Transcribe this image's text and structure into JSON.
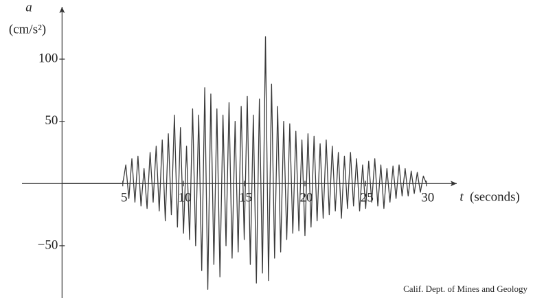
{
  "chart_data": {
    "type": "line",
    "y_label_var": "a",
    "y_label_unit": "(cm/s²)",
    "x_label_var": "t",
    "x_label_unit": "(seconds)",
    "source": "Calif. Dept. of Mines and Geology",
    "color": "#3a3a3a",
    "xlim": [
      -3.3,
      32.5
    ],
    "ylim": [
      -92,
      142
    ],
    "xticks": [
      5,
      10,
      15,
      20,
      25,
      30
    ],
    "yticks": [
      100,
      50,
      {
        "value": -50,
        "label": "−50"
      }
    ],
    "x": [
      0,
      5.0,
      5.25,
      5.5,
      5.75,
      6.0,
      6.25,
      6.5,
      6.75,
      7.0,
      7.25,
      7.5,
      7.75,
      8.0,
      8.25,
      8.5,
      8.75,
      9.0,
      9.25,
      9.5,
      9.75,
      10.0,
      10.25,
      10.5,
      10.75,
      11.0,
      11.25,
      11.5,
      11.75,
      12.0,
      12.25,
      12.5,
      12.75,
      13.0,
      13.25,
      13.5,
      13.75,
      14.0,
      14.25,
      14.5,
      14.75,
      15.0,
      15.25,
      15.5,
      15.75,
      16.0,
      16.25,
      16.5,
      16.75,
      17.0,
      17.25,
      17.5,
      17.75,
      18.0,
      18.25,
      18.5,
      18.75,
      19.0,
      19.25,
      19.5,
      19.75,
      20.0,
      20.25,
      20.5,
      20.75,
      21.0,
      21.25,
      21.5,
      21.75,
      22.0,
      22.25,
      22.5,
      22.75,
      23.0,
      23.25,
      23.5,
      23.75,
      24.0,
      24.25,
      24.5,
      24.75,
      25.0,
      25.25,
      25.5,
      25.75,
      26.0,
      26.25,
      26.5,
      26.75,
      27.0,
      27.25,
      27.5,
      27.75,
      28.0,
      28.25,
      28.5,
      28.75,
      29.0,
      29.25,
      29.5,
      29.75,
      30.0
    ],
    "values": [
      0,
      0,
      15,
      -12,
      20,
      -15,
      22,
      -18,
      12,
      -20,
      25,
      -15,
      30,
      -22,
      35,
      -30,
      40,
      -25,
      55,
      -35,
      45,
      -40,
      30,
      -45,
      60,
      -50,
      55,
      -70,
      77,
      -85,
      72,
      -65,
      60,
      -75,
      55,
      -50,
      65,
      -60,
      50,
      -55,
      62,
      -45,
      70,
      -65,
      55,
      -80,
      68,
      -72,
      118,
      -78,
      80,
      -60,
      62,
      -55,
      50,
      -45,
      48,
      -40,
      42,
      -38,
      35,
      -42,
      40,
      -35,
      38,
      -30,
      32,
      -28,
      35,
      -25,
      30,
      -22,
      25,
      -28,
      22,
      -20,
      25,
      -18,
      20,
      -22,
      15,
      -20,
      18,
      -15,
      20,
      -18,
      15,
      -20,
      12,
      -15,
      14,
      -12,
      15,
      -10,
      12,
      -10,
      10,
      -8,
      9,
      -7,
      6,
      0
    ]
  }
}
